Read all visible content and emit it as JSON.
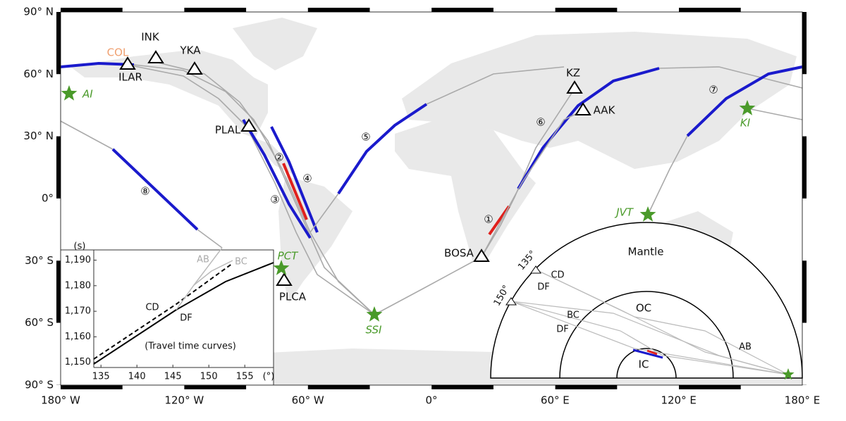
{
  "map": {
    "lat_ticks": [
      {
        "value": 90,
        "label": "90° N"
      },
      {
        "value": 60,
        "label": "60° N"
      },
      {
        "value": 30,
        "label": "30° N"
      },
      {
        "value": 0,
        "label": "0°"
      },
      {
        "value": -30,
        "label": "30° S"
      },
      {
        "value": -60,
        "label": "60° S"
      },
      {
        "value": -90,
        "label": "90° S"
      }
    ],
    "lon_ticks": [
      {
        "value": -180,
        "label": "180° W"
      },
      {
        "value": -120,
        "label": "120° W"
      },
      {
        "value": -60,
        "label": "60° W"
      },
      {
        "value": 0,
        "label": "0°"
      },
      {
        "value": 60,
        "label": "60° E"
      },
      {
        "value": 120,
        "label": "120° E"
      },
      {
        "value": 180,
        "label": "180° E"
      }
    ],
    "stations": [
      "INK",
      "YKA",
      "COL",
      "ILAR",
      "KZ",
      "AAK",
      "PLAL",
      "BOSA",
      "PLCA"
    ],
    "events": [
      "AI",
      "KI",
      "JVT",
      "PCT",
      "SSI"
    ],
    "path_numbers": [
      "①",
      "②",
      "③",
      "④",
      "⑤",
      "⑥",
      "⑦",
      "⑧"
    ]
  },
  "travel_time_inset": {
    "title": "(Travel time curves)",
    "y_unit": "(s)",
    "x_unit": "(°)",
    "xlim": [
      134,
      159
    ],
    "ylim": [
      1148,
      1194
    ],
    "xticks": [
      135,
      140,
      145,
      150,
      155
    ],
    "yticks": [
      {
        "value": 1150,
        "label": "1,150"
      },
      {
        "value": 1160,
        "label": "1,160"
      },
      {
        "value": 1170,
        "label": "1,170"
      },
      {
        "value": 1180,
        "label": "1,180"
      },
      {
        "value": 1190,
        "label": "1,190"
      }
    ],
    "branch_labels": [
      "AB",
      "BC",
      "CD",
      "DF"
    ]
  },
  "ray_inset": {
    "regions": [
      "Mantle",
      "OC",
      "IC"
    ],
    "distance_labels": [
      "135°",
      "150°"
    ],
    "ray_labels": [
      "CD",
      "DF",
      "BC",
      "DF",
      "AB"
    ]
  }
}
